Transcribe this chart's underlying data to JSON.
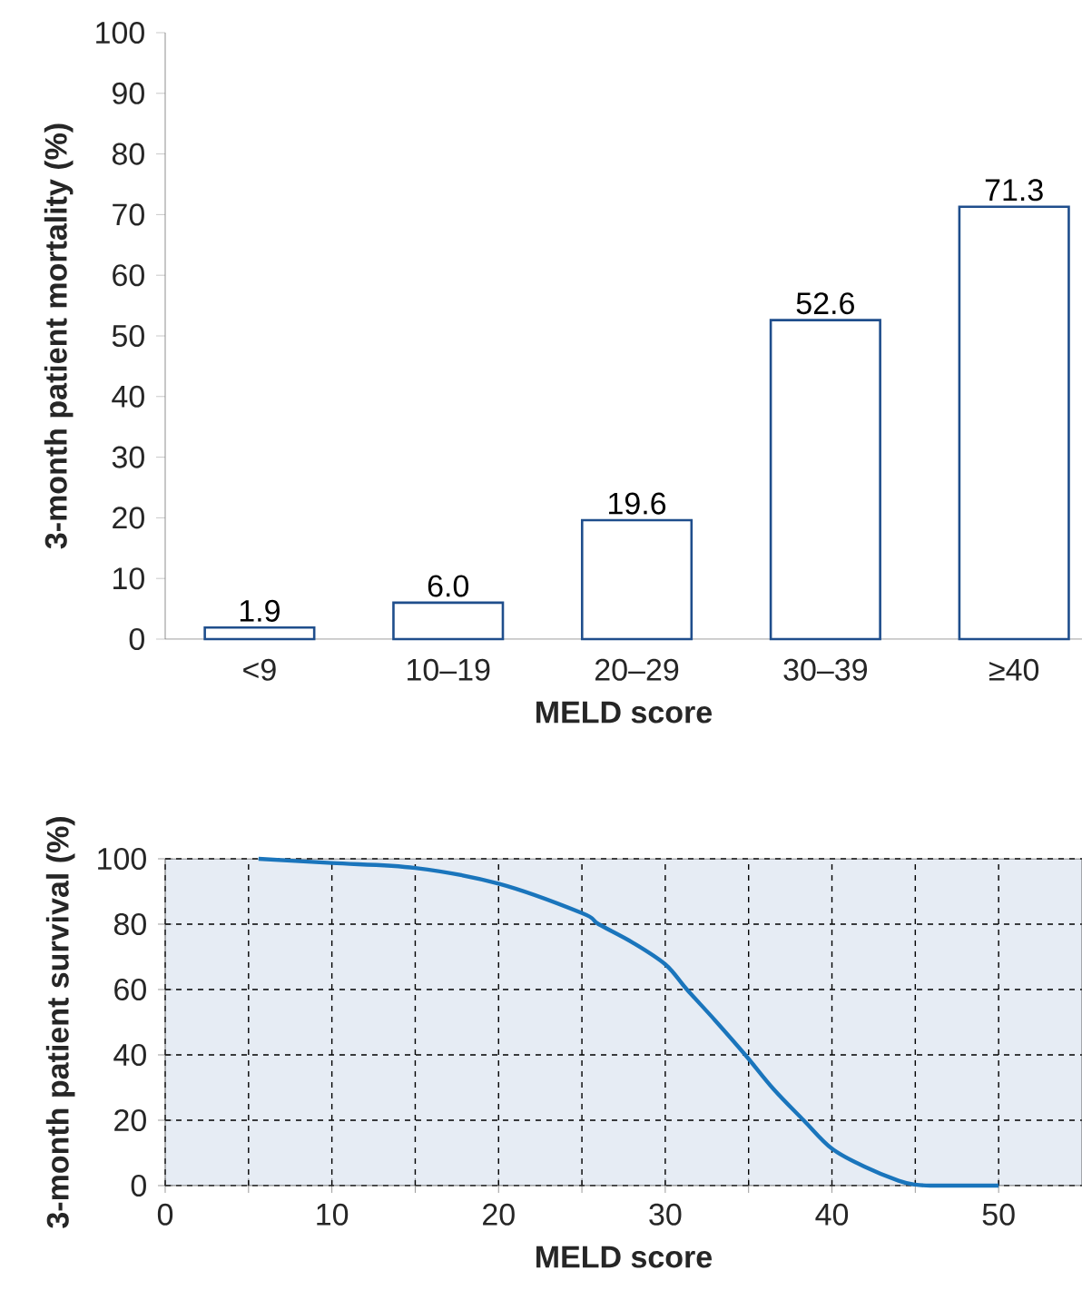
{
  "chart_data": [
    {
      "type": "bar",
      "xlabel": "MELD score",
      "ylabel": "3-month patient mortality (%)",
      "categories": [
        "<9",
        "10–19",
        "20–29",
        "30–39",
        "≥40"
      ],
      "values": [
        1.9,
        6.0,
        19.6,
        52.6,
        71.3
      ],
      "value_labels": [
        "1.9",
        "6.0",
        "19.6",
        "52.6",
        "71.3"
      ],
      "color": "#1f4e8c",
      "ylim": [
        0,
        100
      ],
      "yticks": [
        0,
        10,
        20,
        30,
        40,
        50,
        60,
        70,
        80,
        90,
        100
      ],
      "grid": false
    },
    {
      "type": "line",
      "xlabel": "MELD score",
      "ylabel": "3-month patient survival (%)",
      "x": [
        5.6,
        10,
        15,
        20,
        25,
        26,
        28,
        30,
        31.3,
        33,
        34.8,
        36.5,
        38.3,
        40,
        42,
        44,
        45,
        46,
        48,
        50
      ],
      "values": [
        100,
        98.7,
        97.2,
        92.4,
        83.4,
        80,
        74.5,
        67.7,
        60,
        50.5,
        40,
        29.5,
        20,
        11.3,
        5.7,
        1.5,
        0.3,
        0,
        0,
        0
      ],
      "color": "#1a75bc",
      "xlim": [
        0,
        55
      ],
      "ylim": [
        0,
        100
      ],
      "xticks": [
        0,
        {
          "value": 5,
          "label": null
        },
        10,
        {
          "value": 15,
          "label": null
        },
        20,
        {
          "value": 25,
          "label": null
        },
        30,
        {
          "value": 35,
          "label": null
        },
        40,
        {
          "value": 45,
          "label": null
        },
        50
      ],
      "yticks": [
        0,
        20,
        40,
        60,
        80,
        100
      ],
      "grid": true
    }
  ]
}
